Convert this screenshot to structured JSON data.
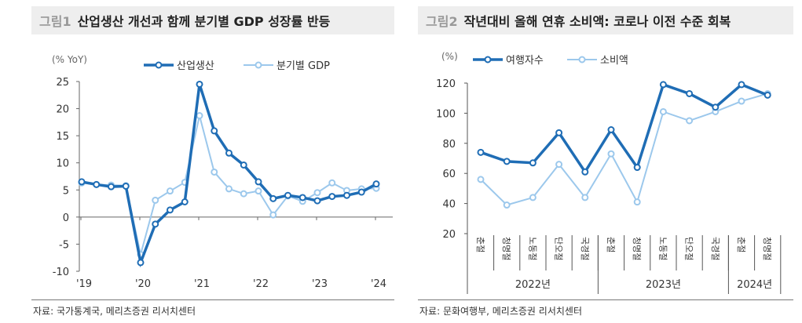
{
  "left": {
    "fig": "그림1",
    "title": "산업생산 개선과 함께 분기별 GDP 성장률 반등",
    "source": "자료: 국가통계국, 메리츠증권 리서치센터"
  },
  "right": {
    "fig": "그림2",
    "title": "작년대비 올해 연휴 소비액: 코로나 이전 수준 회복",
    "source": "자료: 문화여행부, 메리츠증권 리서치센터"
  },
  "colors": {
    "dark": "#1f6db5",
    "light": "#9cc8ec"
  },
  "chart_data": [
    {
      "type": "line",
      "unit": "(% YoY)",
      "ylim": [
        -10,
        25
      ],
      "yticks": [
        25,
        20,
        15,
        10,
        5,
        0,
        -5,
        -10
      ],
      "xticks": [
        "'19",
        "'20",
        "'21",
        "'22",
        "'23",
        "'24"
      ],
      "x": [
        "2019Q1",
        "2019Q2",
        "2019Q3",
        "2019Q4",
        "2020Q1",
        "2020Q2",
        "2020Q3",
        "2020Q4",
        "2021Q1",
        "2021Q2",
        "2021Q3",
        "2021Q4",
        "2022Q1",
        "2022Q2",
        "2022Q3",
        "2022Q4",
        "2023Q1",
        "2023Q2",
        "2023Q3",
        "2023Q4",
        "2024Q1"
      ],
      "series": [
        {
          "name": "산업생산",
          "values": [
            6.5,
            6.0,
            5.6,
            5.7,
            -8.4,
            -1.3,
            1.3,
            2.8,
            24.5,
            15.9,
            11.8,
            9.6,
            6.5,
            3.4,
            4.0,
            3.6,
            3.0,
            3.8,
            4.0,
            4.6,
            6.1
          ]
        },
        {
          "name": "분기별 GDP",
          "values": [
            6.3,
            6.0,
            5.9,
            5.8,
            -6.9,
            3.1,
            4.8,
            6.4,
            18.7,
            8.3,
            5.2,
            4.3,
            4.8,
            0.4,
            3.9,
            2.9,
            4.5,
            6.3,
            4.9,
            5.2,
            5.3
          ]
        }
      ]
    },
    {
      "type": "line",
      "unit": "(%)",
      "ylim": [
        20,
        120
      ],
      "yticks": [
        120,
        100,
        80,
        60,
        40,
        20
      ],
      "categories": [
        "춘절",
        "청명절",
        "노동절",
        "단오절",
        "국경절",
        "춘절",
        "청명절",
        "노동절",
        "단오절",
        "국경절",
        "춘절",
        "청명절"
      ],
      "groups": [
        {
          "label": "2022년",
          "count": 5
        },
        {
          "label": "2023년",
          "count": 5
        },
        {
          "label": "2024년",
          "count": 2
        }
      ],
      "series": [
        {
          "name": "여행자수",
          "values": [
            74,
            68,
            67,
            87,
            61,
            89,
            64,
            119,
            113,
            104,
            119,
            112
          ]
        },
        {
          "name": "소비액",
          "values": [
            56,
            39,
            44,
            66,
            44,
            73,
            41,
            101,
            95,
            101,
            108,
            113
          ]
        }
      ]
    }
  ]
}
